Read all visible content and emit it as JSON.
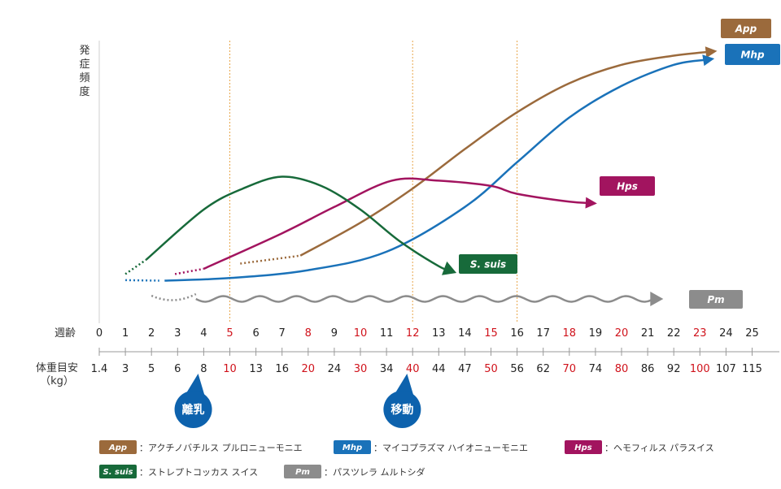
{
  "chart_data": {
    "type": "line",
    "ylabel": "発症頻度",
    "row_labels": {
      "weeks": "週齢",
      "weight_line1": "体重目安",
      "weight_line2": "（kg）"
    },
    "weeks": [
      "0",
      "1",
      "2",
      "3",
      "4",
      "5",
      "6",
      "7",
      "8",
      "9",
      "10",
      "11",
      "12",
      "13",
      "14",
      "15",
      "16",
      "17",
      "18",
      "19",
      "20",
      "21",
      "22",
      "23",
      "24",
      "25"
    ],
    "weights": [
      "1.4",
      "3",
      "5",
      "6",
      "8",
      "10",
      "13",
      "16",
      "20",
      "24",
      "30",
      "34",
      "40",
      "44",
      "47",
      "50",
      "56",
      "62",
      "70",
      "74",
      "80",
      "86",
      "92",
      "100",
      "107",
      "115"
    ],
    "highlight_weeks": [
      5,
      8,
      10,
      12,
      15,
      18,
      20,
      23
    ],
    "guide_weeks": [
      5,
      12,
      16
    ],
    "events": [
      {
        "label": "離乳",
        "week": 3.6
      },
      {
        "label": "移動",
        "week": 11.6
      }
    ],
    "series": [
      {
        "name": "App",
        "color": "#9b6a3c",
        "end": "arrow",
        "dotted": [
          [
            5.4,
            0.085
          ],
          [
            7.7,
            0.115
          ]
        ],
        "solid": [
          [
            7.7,
            0.115
          ],
          [
            10,
            0.24
          ],
          [
            12,
            0.37
          ],
          [
            14,
            0.52
          ],
          [
            16,
            0.66
          ],
          [
            18,
            0.77
          ],
          [
            20,
            0.84
          ],
          [
            22,
            0.875
          ],
          [
            23.4,
            0.89
          ]
        ]
      },
      {
        "name": "Mhp",
        "color": "#1a72b9",
        "end": "arrow",
        "dotted": [
          [
            1,
            0.022
          ],
          [
            2.3,
            0.02
          ]
        ],
        "solid": [
          [
            2.5,
            0.02
          ],
          [
            5,
            0.03
          ],
          [
            8,
            0.06
          ],
          [
            11,
            0.13
          ],
          [
            14,
            0.3
          ],
          [
            16,
            0.47
          ],
          [
            18,
            0.64
          ],
          [
            20,
            0.76
          ],
          [
            22,
            0.84
          ],
          [
            23.3,
            0.86
          ]
        ]
      },
      {
        "name": "Hps",
        "color": "#a2145f",
        "end": "arrow",
        "dotted": [
          [
            2.9,
            0.045
          ],
          [
            4,
            0.065
          ]
        ],
        "solid": [
          [
            4,
            0.065
          ],
          [
            7,
            0.2
          ],
          [
            9,
            0.3
          ],
          [
            11.2,
            0.4
          ],
          [
            13,
            0.4
          ],
          [
            15,
            0.38
          ],
          [
            16,
            0.35
          ],
          [
            18,
            0.32
          ],
          [
            18.8,
            0.315
          ]
        ]
      },
      {
        "name": "S. suis",
        "color": "#176a3a",
        "end": "triangle",
        "dotted": [
          [
            1,
            0.045
          ],
          [
            1.8,
            0.1
          ]
        ],
        "solid": [
          [
            1.8,
            0.1
          ],
          [
            4,
            0.29
          ],
          [
            5.5,
            0.37
          ],
          [
            7,
            0.415
          ],
          [
            8.5,
            0.38
          ],
          [
            10,
            0.29
          ],
          [
            11.5,
            0.17
          ],
          [
            13,
            0.075
          ],
          [
            13.4,
            0.06
          ]
        ]
      },
      {
        "name": "Pm",
        "color": "#8c8c8c",
        "end": "triangle",
        "wavy": true,
        "dotted": [
          [
            2,
            0.0
          ],
          [
            3.7,
            0.0
          ]
        ],
        "solid": [
          [
            3.7,
            0.0
          ],
          [
            21.3,
            0.0
          ]
        ]
      }
    ],
    "legend": [
      {
        "name": "App",
        "color": "#9b6a3c",
        "desc": "：アクチノバチルス プルロニューモニエ"
      },
      {
        "name": "Mhp",
        "color": "#1a72b9",
        "desc": "：マイコプラズマ ハイオニューモニエ"
      },
      {
        "name": "Hps",
        "color": "#a2145f",
        "desc": "：ヘモフィルス パラスイス"
      },
      {
        "name": "S. suis",
        "color": "#176a3a",
        "desc": "：ストレプトコッカス スイス"
      },
      {
        "name": "Pm",
        "color": "#8c8c8c",
        "desc": "：パスツレラ ムルトシダ"
      }
    ]
  }
}
